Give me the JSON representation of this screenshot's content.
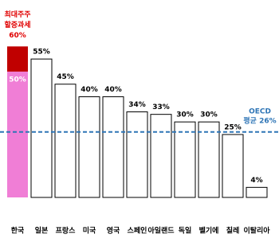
{
  "chart_data": {
    "type": "bar",
    "categories": [
      "한국",
      "일본",
      "프랑스",
      "미국",
      "영국",
      "스페인",
      "아일랜드",
      "독일",
      "벨기에",
      "칠레",
      "이탈리아"
    ],
    "series": [
      {
        "colors": [
          "#f07ed6",
          "#ffffff",
          "#ffffff",
          "#ffffff",
          "#ffffff",
          "#ffffff",
          "#ffffff",
          "#ffffff",
          "#ffffff",
          "#ffffff",
          "#ffffff"
        ],
        "values": [
          50,
          55,
          45,
          40,
          40,
          34,
          33,
          30,
          30,
          25,
          4
        ],
        "value_labels": [
          "50%",
          "55%",
          "45%",
          "40%",
          "40%",
          "34%",
          "33%",
          "30%",
          "30%",
          "25%",
          "4%"
        ]
      },
      {
        "color": "#c00000",
        "values": [
          10,
          null,
          null,
          null,
          null,
          null,
          null,
          null,
          null,
          null,
          null
        ]
      }
    ],
    "annotation": [
      "최대주주",
      "할증과세",
      "60%"
    ],
    "annotation_color": "#e00000",
    "reference_line": {
      "value": 26,
      "label": [
        "OECD",
        "평균 26%"
      ],
      "color": "#2e75b6"
    },
    "ylim": [
      0,
      62
    ]
  }
}
